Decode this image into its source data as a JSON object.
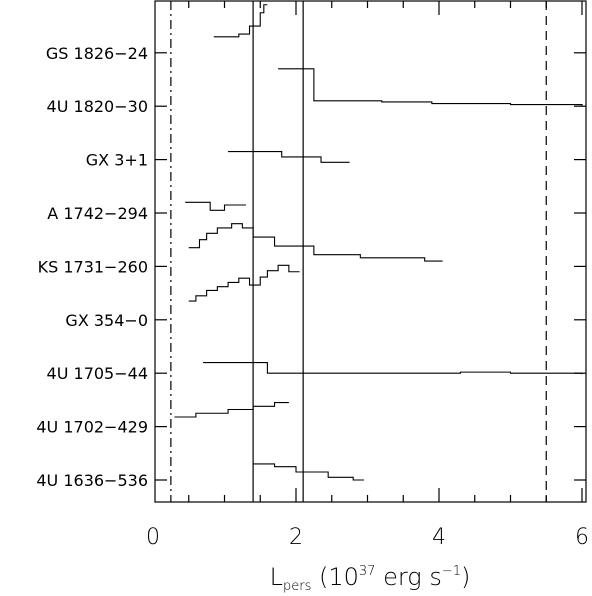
{
  "chart_data": {
    "type": "line",
    "title": "",
    "xlabel": {
      "main": "L",
      "sub": "pers",
      "pre": " (10",
      "sup": "37",
      "post": " erg s",
      "sup2": "−1",
      "end": ")"
    },
    "xlim": [
      0,
      6
    ],
    "xticks": [
      0,
      2,
      4,
      6
    ],
    "ylim": [
      -0.5,
      8.5
    ],
    "sources": [
      "GS 1826−24",
      "4U 1820−30",
      "GX 3+1",
      "A 1742−294",
      "KS 1731−260",
      "GX 354−0",
      "4U 1705−44",
      "4U 1702−429",
      "4U 1636−536"
    ],
    "vertical_lines": [
      {
        "x": 0.25,
        "style": "dashdot"
      },
      {
        "x": 1.4,
        "style": "solid"
      },
      {
        "x": 2.1,
        "style": "solid"
      },
      {
        "x": 5.5,
        "style": "dashed"
      }
    ],
    "series": [
      {
        "source": "GS 1826−24",
        "x": [
          0.85,
          1.2,
          1.35,
          1.5,
          1.55,
          1.6
        ],
        "y": [
          8.3,
          8.35,
          8.5,
          8.75,
          8.9,
          8.9
        ]
      },
      {
        "source": "4U 1820−30",
        "x": [
          1.75,
          2.25,
          2.35,
          3.2,
          3.9,
          5.0,
          6.0
        ],
        "y": [
          7.7,
          7.1,
          7.1,
          7.08,
          7.05,
          7.03,
          7.0
        ]
      },
      {
        "source": "GX 3+1",
        "x": [
          1.05,
          1.8,
          2.35,
          2.75
        ],
        "y": [
          6.15,
          6.05,
          5.95,
          5.95
        ]
      },
      {
        "source": "A 1742−294",
        "x": [
          0.45,
          0.8,
          1.0,
          1.3
        ],
        "y": [
          5.2,
          5.05,
          5.15,
          5.15
        ]
      },
      {
        "source": "KS 1731−260",
        "x": [
          0.5,
          0.65,
          0.75,
          0.9,
          1.1,
          1.25,
          1.4,
          1.7,
          2.25,
          2.9,
          3.8,
          4.05
        ],
        "y": [
          4.35,
          4.5,
          4.62,
          4.72,
          4.8,
          4.72,
          4.55,
          4.38,
          4.22,
          4.16,
          4.1,
          4.1
        ]
      },
      {
        "source": "GX 354−0",
        "x": [
          0.5,
          0.6,
          0.75,
          0.9,
          1.05,
          1.2,
          1.35,
          1.5,
          1.6,
          1.75,
          1.9,
          2.05
        ],
        "y": [
          3.35,
          3.45,
          3.55,
          3.62,
          3.7,
          3.78,
          3.65,
          3.8,
          3.92,
          4.02,
          3.9,
          3.9
        ]
      },
      {
        "source": "4U 1705−44",
        "x": [
          0.7,
          1.6,
          3.0,
          4.3,
          5.0,
          6.0
        ],
        "y": [
          2.2,
          2.0,
          2.0,
          2.02,
          2.0,
          1.98
        ]
      },
      {
        "source": "4U 1702−429",
        "x": [
          0.3,
          0.6,
          1.05,
          1.4,
          1.7,
          1.9
        ],
        "y": [
          1.18,
          1.25,
          1.32,
          1.38,
          1.45,
          1.45
        ]
      },
      {
        "source": "4U 1636−536",
        "x": [
          1.4,
          1.7,
          2.0,
          2.45,
          2.8,
          2.95
        ],
        "y": [
          0.3,
          0.25,
          0.15,
          0.05,
          0.0,
          0.0
        ]
      }
    ]
  }
}
